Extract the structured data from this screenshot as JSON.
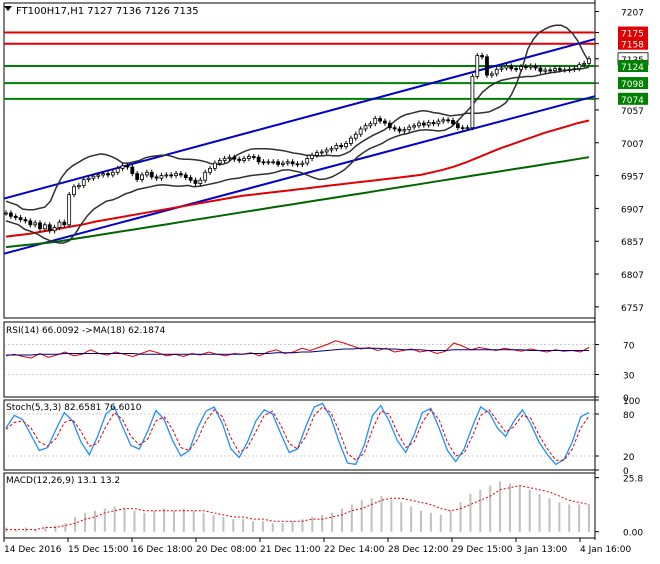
{
  "header": {
    "symbol_line": "FT100H17,H1  7127 7136 7126 7135"
  },
  "colors": {
    "candle": "#000000",
    "bb_band": "#303030",
    "bb_mid": "#3a6b3a",
    "channel": "#0000cc",
    "ma_red": "#e00000",
    "ma_green": "#006400",
    "hline_red": "#e00000",
    "hline_green": "#008000",
    "rsi_line": "#e00000",
    "rsi_ma": "#000080",
    "stoch_main": "#1e90ff",
    "stoch_signal": "#e00000",
    "macd_hist": "#c0c0c0",
    "macd_signal": "#e00000"
  },
  "chart_data": [
    {
      "type": "line",
      "panel": "price",
      "symbol": "FT100H17",
      "timeframe": "H1",
      "ohlc_last": {
        "open": 7127,
        "high": 7136,
        "low": 7126,
        "close": 7135
      },
      "ylim": [
        6740,
        7220
      ],
      "yticks": [
        7207,
        7175,
        7158,
        7135,
        7124,
        7098,
        7074,
        7057,
        7007,
        6957,
        6907,
        6857,
        6807,
        6757
      ],
      "x_labels": [
        "14 Dec 2016",
        "15 Dec 15:00",
        "16 Dec 18:00",
        "20 Dec 08:00",
        "21 Dec 11:00",
        "22 Dec 14:00",
        "28 Dec 12:00",
        "29 Dec 15:00",
        "3 Jan 13:00",
        "4 Jan 16:00"
      ],
      "close": [
        6900,
        6895,
        6893,
        6890,
        6888,
        6882,
        6885,
        6876,
        6882,
        6873,
        6878,
        6886,
        6882,
        6928,
        6940,
        6942,
        6951,
        6953,
        6956,
        6958,
        6960,
        6958,
        6962,
        6968,
        6972,
        6970,
        6960,
        6951,
        6958,
        6962,
        6955,
        6953,
        6957,
        6958,
        6957,
        6960,
        6958,
        6954,
        6950,
        6945,
        6950,
        6962,
        6968,
        6976,
        6980,
        6983,
        6985,
        6982,
        6980,
        6983,
        6986,
        6985,
        6978,
        6977,
        6978,
        6978,
        6974,
        6976,
        6978,
        6975,
        6974,
        6976,
        6983,
        6988,
        6992,
        6993,
        6996,
        6998,
        7003,
        7001,
        7006,
        7014,
        7020,
        7028,
        7033,
        7036,
        7044,
        7040,
        7037,
        7030,
        7028,
        7025,
        7027,
        7031,
        7033,
        7037,
        7034,
        7038,
        7036,
        7040,
        7042,
        7041,
        7036,
        7030,
        7029,
        7030,
        7108,
        7140,
        7138,
        7110,
        7112,
        7119,
        7121,
        7124,
        7120,
        7119,
        7123,
        7122,
        7124,
        7121,
        7116,
        7118,
        7117,
        7120,
        7118,
        7118,
        7119,
        7120,
        7126,
        7128,
        7135
      ],
      "bollinger_upper": [
        6918,
        6915,
        6912,
        6906,
        6905,
        6905,
        6907,
        6909,
        6918,
        6938,
        6954,
        6965,
        6972,
        6977,
        6982,
        6986,
        6988,
        6990,
        6989,
        6986,
        6982,
        6976,
        6976,
        6978,
        6980,
        6984,
        6986,
        6987,
        6988,
        6988,
        6986,
        6983,
        6982,
        6982,
        6981,
        6980,
        6978,
        6975,
        6974,
        6974,
        6977,
        6985,
        6990,
        6994,
        6997,
        6998,
        6998,
        6998,
        6997,
        6996,
        6995,
        6993,
        6991,
        6990,
        6988,
        6988,
        6987,
        6987,
        6988,
        6987,
        6987,
        6990,
        6994,
        7002,
        7008,
        7013,
        7018,
        7022,
        7026,
        7032,
        7040,
        7046,
        7050,
        7052,
        7054,
        7056,
        7055,
        7053,
        7052,
        7050,
        7048,
        7049,
        7050,
        7052,
        7052,
        7052,
        7053,
        7054,
        7058,
        7062,
        7068,
        7080,
        7098,
        7122,
        7150,
        7165,
        7175,
        7180,
        7184,
        7186,
        7186,
        7182,
        7174,
        7162,
        7145,
        7130
      ],
      "bollinger_lower": [
        6888,
        6885,
        6882,
        6875,
        6872,
        6868,
        6862,
        6858,
        6855,
        6854,
        6857,
        6868,
        6883,
        6896,
        6906,
        6912,
        6918,
        6920,
        6924,
        6929,
        6932,
        6936,
        6938,
        6940,
        6942,
        6943,
        6942,
        6941,
        6941,
        6942,
        6940,
        6941,
        6943,
        6945,
        6947,
        6950,
        6952,
        6953,
        6955,
        6957,
        6958,
        6959,
        6960,
        6962,
        6965,
        6966,
        6964,
        6962,
        6958,
        6954,
        6951,
        6952,
        6955,
        6960,
        6966,
        6975,
        6985,
        6992,
        6998,
        7002,
        7006,
        7012,
        7016,
        7019,
        7021,
        7024,
        7026,
        7027,
        7026,
        7025,
        7026,
        7031,
        7040,
        7050,
        7060,
        7072,
        7084,
        7092,
        7098,
        7102,
        7104,
        7106,
        7107,
        7108,
        7108,
        7110,
        7112,
        7114,
        7115,
        7117,
        7118,
        7119,
        7120,
        7122
      ],
      "ma_red": [
        6864,
        6866,
        6868,
        6871,
        6874,
        6877,
        6880,
        6883,
        6887,
        6890,
        6893,
        6896,
        6899,
        6902,
        6905,
        6908,
        6911,
        6914,
        6917,
        6920,
        6923,
        6926,
        6928,
        6930,
        6932,
        6934,
        6936,
        6938,
        6940,
        6942,
        6944,
        6946,
        6948,
        6950,
        6952,
        6954,
        6956,
        6958,
        6962,
        6966,
        6971,
        6977,
        6984,
        6991,
        6998,
        7004,
        7010,
        7016,
        7022,
        7027,
        7032,
        7037,
        7041
      ],
      "ma_green": [
        6848,
        6850,
        6852,
        6854,
        6856,
        6859,
        6862,
        6865,
        6868,
        6871,
        6874,
        6877,
        6880,
        6883,
        6886,
        6889,
        6892,
        6895,
        6898,
        6901,
        6904,
        6907,
        6910,
        6913,
        6916,
        6919,
        6922,
        6925,
        6928,
        6931,
        6934,
        6937,
        6940,
        6943,
        6946,
        6949,
        6952,
        6955,
        6958,
        6961,
        6964,
        6967,
        6970,
        6973,
        6976,
        6979,
        6982,
        6985
      ],
      "horizontal_levels": [
        {
          "value": 7175,
          "color": "red"
        },
        {
          "value": 7158,
          "color": "red"
        },
        {
          "value": 7124,
          "color": "green"
        },
        {
          "value": 7098,
          "color": "green"
        },
        {
          "value": 7074,
          "color": "green"
        }
      ],
      "channel_lines": [
        {
          "from": 6922,
          "to": 7165
        },
        {
          "from": 6838,
          "to": 7078
        }
      ]
    },
    {
      "type": "line",
      "panel": "rsi",
      "label": "RSI(14) 66.0092  ->MA(18) 62.1874",
      "ylim": [
        0,
        100
      ],
      "yticks": [
        70,
        30,
        0
      ],
      "levels": [
        70,
        30
      ],
      "series": [
        {
          "name": "RSI(14)",
          "values": [
            55,
            57,
            54,
            52,
            58,
            53,
            56,
            60,
            55,
            57,
            63,
            58,
            56,
            60,
            57,
            54,
            58,
            62,
            59,
            55,
            57,
            54,
            58,
            56,
            60,
            57,
            55,
            58,
            57,
            59,
            55,
            60,
            63,
            58,
            60,
            65,
            62,
            66,
            70,
            75,
            72,
            68,
            64,
            66,
            62,
            65,
            60,
            62,
            64,
            60,
            62,
            58,
            61,
            72,
            68,
            63,
            66,
            64,
            62,
            65,
            63,
            61,
            64,
            62,
            60,
            63,
            61,
            62,
            60,
            66
          ]
        },
        {
          "name": "MA(18)",
          "values": [
            56,
            56,
            56,
            56,
            57,
            57,
            57,
            58,
            58,
            58,
            58,
            58,
            58,
            58,
            58,
            58,
            57,
            57,
            57,
            57,
            57,
            57,
            57,
            57,
            57,
            57,
            57,
            57,
            57,
            58,
            58,
            58,
            59,
            59,
            59,
            60,
            60,
            61,
            62,
            63,
            64,
            64,
            65,
            65,
            65,
            64,
            64,
            63,
            63,
            63,
            62,
            62,
            62,
            63,
            63,
            63,
            63,
            63,
            63,
            63,
            63,
            63,
            62,
            62,
            62,
            62,
            62,
            62,
            62,
            62
          ]
        }
      ]
    },
    {
      "type": "line",
      "panel": "stochastic",
      "label": "Stoch(5,3,3) 82.6581  76.6010",
      "ylim": [
        0,
        100
      ],
      "yticks": [
        100,
        80,
        20,
        0
      ],
      "levels": [
        80,
        20
      ],
      "series": [
        {
          "name": "Main",
          "values": [
            60,
            78,
            72,
            50,
            28,
            32,
            58,
            82,
            70,
            40,
            22,
            48,
            80,
            90,
            62,
            35,
            30,
            55,
            85,
            72,
            42,
            20,
            28,
            60,
            84,
            90,
            66,
            30,
            18,
            40,
            70,
            86,
            80,
            52,
            25,
            30,
            62,
            90,
            95,
            75,
            40,
            10,
            8,
            35,
            78,
            92,
            70,
            42,
            25,
            50,
            82,
            88,
            60,
            28,
            12,
            30,
            62,
            90,
            82,
            60,
            48,
            70,
            86,
            66,
            40,
            22,
            8,
            15,
            40,
            76,
            82
          ]
        },
        {
          "name": "Signal",
          "values": [
            58,
            68,
            70,
            60,
            40,
            34,
            45,
            68,
            72,
            55,
            34,
            38,
            62,
            82,
            72,
            48,
            36,
            44,
            70,
            76,
            58,
            32,
            28,
            44,
            70,
            86,
            76,
            46,
            25,
            32,
            55,
            78,
            84,
            64,
            38,
            30,
            48,
            78,
            90,
            82,
            56,
            24,
            14,
            24,
            58,
            84,
            80,
            54,
            32,
            40,
            68,
            86,
            72,
            40,
            20,
            24,
            48,
            78,
            86,
            70,
            54,
            62,
            78,
            74,
            50,
            30,
            14,
            14,
            30,
            60,
            77
          ]
        }
      ]
    },
    {
      "type": "bar",
      "panel": "macd",
      "label": "MACD(12,26,9) 13.1  13.2",
      "ylim": [
        -3,
        28
      ],
      "yticks": [
        25.8,
        0.0
      ],
      "ytick_labels": [
        "25.8",
        "0.00"
      ],
      "series": [
        {
          "name": "MACD",
          "values": [
            2,
            1,
            2,
            1,
            2,
            3,
            4,
            7,
            9,
            10,
            11,
            12,
            11,
            10,
            9,
            10,
            11,
            10,
            11,
            10,
            9,
            8,
            7,
            6,
            6,
            5,
            5,
            4,
            4,
            5,
            6,
            7,
            8,
            9,
            11,
            13,
            15,
            16,
            17,
            15,
            14,
            12,
            10,
            9,
            8,
            10,
            14,
            18,
            20,
            22,
            24,
            23,
            22,
            20,
            18,
            16,
            14,
            13,
            13,
            13
          ]
        },
        {
          "name": "Signal",
          "values": [
            1,
            1,
            1,
            1,
            2,
            2,
            3,
            4,
            6,
            7,
            9,
            10,
            11,
            11,
            10,
            10,
            10,
            10,
            10,
            10,
            10,
            9,
            8,
            7,
            7,
            6,
            6,
            5,
            5,
            5,
            5,
            6,
            6,
            7,
            8,
            10,
            11,
            13,
            15,
            16,
            16,
            15,
            14,
            13,
            11,
            10,
            11,
            13,
            15,
            17,
            20,
            21,
            22,
            21,
            20,
            19,
            17,
            15,
            14,
            13
          ]
        }
      ]
    }
  ]
}
